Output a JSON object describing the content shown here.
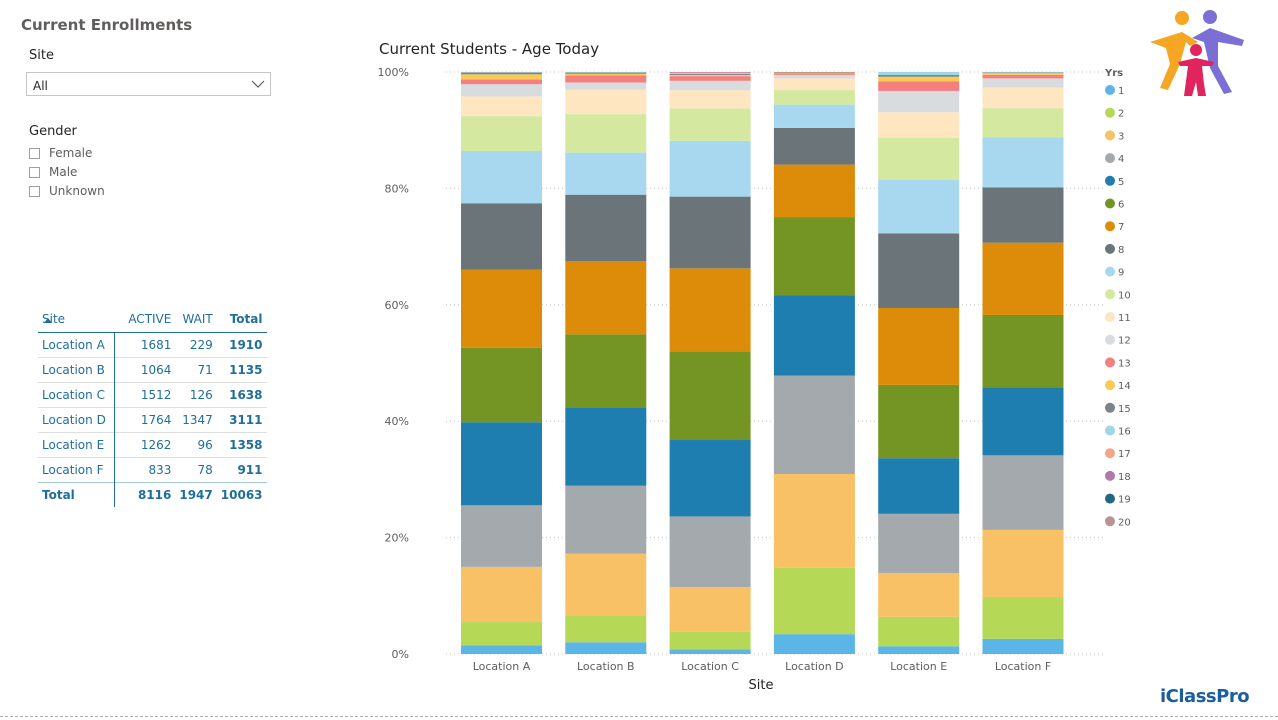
{
  "page_title": "Current Enrollments",
  "site_filter": {
    "label": "Site",
    "value": "All"
  },
  "gender_filter": {
    "label": "Gender",
    "options": [
      "Female",
      "Male",
      "Unknown"
    ]
  },
  "matrix": {
    "headers": [
      "Site",
      "ACTIVE",
      "WAIT",
      "Total"
    ],
    "rows": [
      [
        "Location A",
        "1681",
        "229",
        "1910"
      ],
      [
        "Location B",
        "1064",
        "71",
        "1135"
      ],
      [
        "Location C",
        "1512",
        "126",
        "1638"
      ],
      [
        "Location D",
        "1764",
        "1347",
        "3111"
      ],
      [
        "Location E",
        "1262",
        "96",
        "1358"
      ],
      [
        "Location F",
        "833",
        "78",
        "911"
      ]
    ],
    "total": [
      "Total",
      "8116",
      "1947",
      "10063"
    ]
  },
  "brand": "iClassPro",
  "chart_data": {
    "type": "bar",
    "stacked": true,
    "percent": true,
    "title": "Current Students - Age Today",
    "xlabel": "Site",
    "ylabel": "",
    "ylim": [
      0,
      100
    ],
    "yticks": [
      "0%",
      "20%",
      "40%",
      "60%",
      "80%",
      "100%"
    ],
    "legend_title": "Yrs",
    "legend_position": "right",
    "categories": [
      "Location A",
      "Location B",
      "Location C",
      "Location D",
      "Location E",
      "Location F"
    ],
    "series": [
      {
        "name": "1",
        "color": "#5bb5e6",
        "values": [
          1.5,
          2.0,
          0.8,
          3.4,
          1.3,
          2.6
        ]
      },
      {
        "name": "2",
        "color": "#b5d957",
        "values": [
          4.0,
          4.5,
          3.0,
          11.4,
          5.0,
          7.1
        ]
      },
      {
        "name": "3",
        "color": "#f8c165",
        "values": [
          9.5,
          10.7,
          7.6,
          16.1,
          7.4,
          11.6
        ]
      },
      {
        "name": "4",
        "color": "#a3a9ad",
        "values": [
          10.6,
          11.6,
          12.0,
          16.9,
          10.0,
          12.8
        ]
      },
      {
        "name": "5",
        "color": "#1e7eb0",
        "values": [
          14.3,
          13.3,
          13.0,
          13.8,
          9.4,
          11.7
        ]
      },
      {
        "name": "6",
        "color": "#749424",
        "values": [
          12.8,
          12.6,
          15.1,
          13.4,
          12.4,
          12.4
        ]
      },
      {
        "name": "7",
        "color": "#dc8c08",
        "values": [
          13.5,
          12.5,
          14.1,
          9.0,
          13.0,
          12.4
        ]
      },
      {
        "name": "8",
        "color": "#6a7479",
        "values": [
          11.4,
          11.4,
          12.2,
          6.3,
          12.6,
          9.5
        ]
      },
      {
        "name": "9",
        "color": "#a8d8f0",
        "values": [
          9.0,
          7.2,
          9.5,
          4.0,
          9.1,
          8.6
        ]
      },
      {
        "name": "10",
        "color": "#d4e8a0",
        "values": [
          6.0,
          6.6,
          5.5,
          2.5,
          7.1,
          5.0
        ]
      },
      {
        "name": "11",
        "color": "#fde6c0",
        "values": [
          3.4,
          4.2,
          3.1,
          2.0,
          4.3,
          3.5
        ]
      },
      {
        "name": "12",
        "color": "#d8dcdf",
        "values": [
          2.1,
          1.2,
          1.6,
          0.6,
          3.6,
          1.6
        ]
      },
      {
        "name": "13",
        "color": "#f47f7f",
        "values": [
          0.8,
          1.2,
          0.8,
          0.3,
          1.6,
          0.6
        ]
      },
      {
        "name": "14",
        "color": "#f9cb54",
        "values": [
          0.9,
          0.3,
          0.2,
          0.1,
          0.8,
          0.3
        ]
      },
      {
        "name": "15",
        "color": "#7e8387",
        "values": [
          0.3,
          0.2,
          0.2,
          0.1,
          0.3,
          0.1
        ]
      },
      {
        "name": "16",
        "color": "#9fd7e8",
        "values": [
          0.1,
          0.1,
          0.1,
          0.0,
          0.5,
          0.1
        ]
      },
      {
        "name": "17",
        "color": "#f5a58a",
        "values": [
          0.0,
          0.0,
          0.1,
          0.0,
          0.0,
          0.0
        ]
      },
      {
        "name": "18",
        "color": "#b07aa8",
        "values": [
          0.0,
          0.0,
          0.1,
          0.0,
          0.0,
          0.0
        ]
      },
      {
        "name": "19",
        "color": "#22667f",
        "values": [
          0.0,
          0.0,
          0.0,
          0.0,
          0.0,
          0.0
        ]
      },
      {
        "name": "20",
        "color": "#b89595",
        "values": [
          0.0,
          0.0,
          0.0,
          0.0,
          0.0,
          0.0
        ]
      }
    ]
  }
}
